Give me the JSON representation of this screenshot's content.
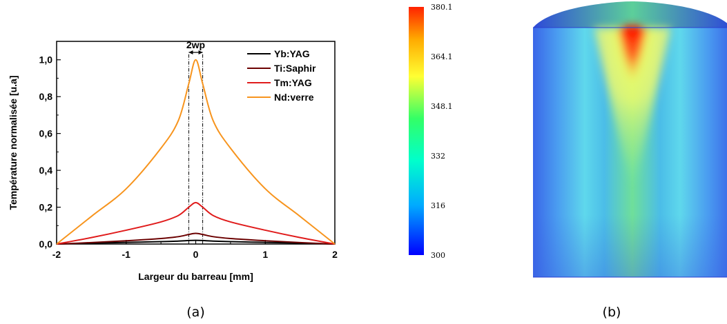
{
  "chart_data": [
    {
      "type": "line",
      "xlabel": "Largeur du barreau [mm]",
      "ylabel": "Température normalisée [u.a]",
      "xlim": [
        -2,
        2
      ],
      "ylim": [
        0,
        1.1
      ],
      "xticks": [
        "-2",
        "-1",
        "0",
        "1",
        "2"
      ],
      "yticks": [
        "0,0",
        "0,2",
        "0,4",
        "0,6",
        "0,8",
        "1,0"
      ],
      "x": [
        -2,
        -1.5,
        -1,
        -0.5,
        -0.25,
        -0.1,
        0,
        0.1,
        0.25,
        0.5,
        1,
        1.5,
        2
      ],
      "series": [
        {
          "name": "Yb:YAG",
          "color": "#000000",
          "values": [
            0,
            0.005,
            0.009,
            0.013,
            0.016,
            0.019,
            0.02,
            0.019,
            0.016,
            0.013,
            0.009,
            0.005,
            0
          ]
        },
        {
          "name": "Ti:Saphir",
          "color": "#6b0000",
          "values": [
            0,
            0.008,
            0.018,
            0.03,
            0.04,
            0.052,
            0.058,
            0.052,
            0.04,
            0.03,
            0.018,
            0.008,
            0
          ]
        },
        {
          "name": "Tm:YAG",
          "color": "#e01b1b",
          "values": [
            0,
            0.035,
            0.075,
            0.12,
            0.155,
            0.2,
            0.225,
            0.2,
            0.155,
            0.12,
            0.075,
            0.035,
            0
          ]
        },
        {
          "name": "Nd:verre",
          "color": "#f7941d",
          "values": [
            0,
            0.15,
            0.3,
            0.52,
            0.67,
            0.87,
            1.0,
            0.87,
            0.67,
            0.52,
            0.3,
            0.15,
            0
          ]
        }
      ],
      "annotations": [
        {
          "text": "2wp",
          "x_left": -0.1,
          "x_right": 0.1
        }
      ],
      "legend": "top-right",
      "grid": false
    },
    {
      "type": "heatmap",
      "colorbar_ticks": [
        "380.1",
        "364.1",
        "348.1",
        "332",
        "316",
        "300"
      ],
      "colorbar_range": [
        300,
        380.1
      ],
      "colorbar_colors": [
        "#0000ff",
        "#00aaff",
        "#00ffcc",
        "#33ff66",
        "#ffff33",
        "#ffaa00",
        "#ff2200"
      ]
    }
  ],
  "captions": {
    "a": "(a)",
    "b": "(b)"
  }
}
